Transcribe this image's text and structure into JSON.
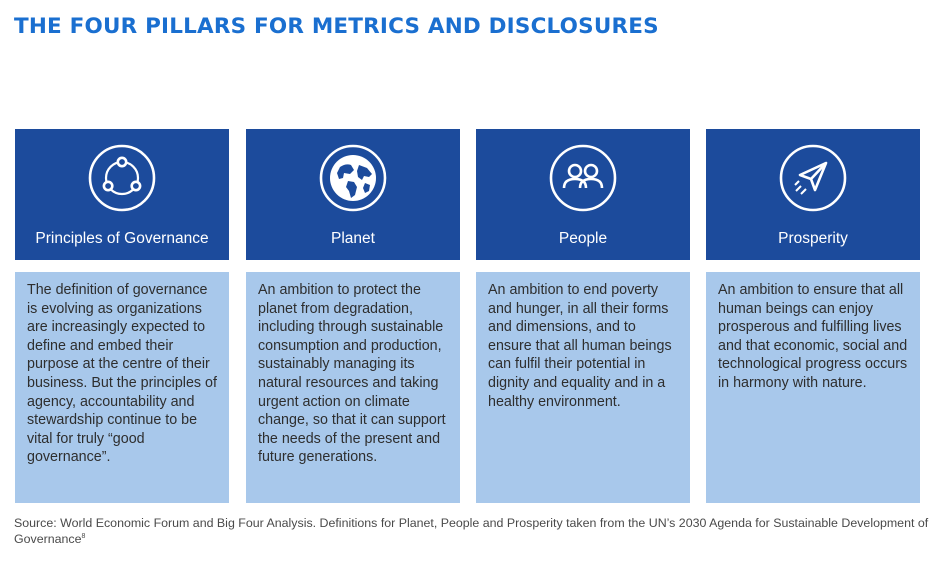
{
  "title": "THE FOUR PILLARS FOR METRICS AND DISCLOSURES",
  "pillars": [
    {
      "name": "Principles of Governance",
      "icon": "governance-cycle-icon",
      "description": "The definition of governance is evolving as organizations are increasingly expected to define and embed their purpose at the centre of their business. But the principles of agency, accountability and stewardship continue to be vital for truly “good governance”."
    },
    {
      "name": "Planet",
      "icon": "globe-icon",
      "description": "An ambition to protect the planet from degradation, including through sustainable consumption and production, sustainably managing its natural resources and taking urgent action on climate change, so that it can support the needs of the present and future generations."
    },
    {
      "name": "People",
      "icon": "people-icon",
      "description": "An ambition to end poverty and hunger, in all their forms and dimensions, and to ensure that all human beings can fulfil their potential in dignity and equality and in a healthy environment."
    },
    {
      "name": "Prosperity",
      "icon": "paper-plane-icon",
      "description": "An ambition to ensure that all human beings can enjoy prosperous and fulfilling lives and that economic, social and technological progress occurs in harmony with nature."
    }
  ],
  "source": {
    "text": "Source: World Economic Forum and Big Four Analysis. Definitions for Planet, People and Prosperity taken from the UN’s 2030 Agenda for Sustainable Development of Governance",
    "footnote": "8"
  },
  "colors": {
    "title": "#1a6fd0",
    "header_bg": "#1c4b9c",
    "body_bg": "#a8c8eb",
    "body_text": "#2e2e2e"
  }
}
